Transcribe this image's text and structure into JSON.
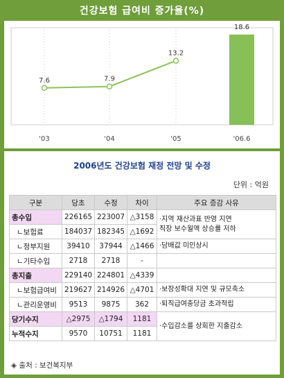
{
  "title": "건강보험 급여비 증가율(%)",
  "chart_data": {
    "type": "bar+line",
    "categories": [
      "'03",
      "'04",
      "'05",
      "'06.6"
    ],
    "line_values": [
      7.6,
      7.9,
      13.2,
      null
    ],
    "bar_values": [
      null,
      null,
      null,
      18.6
    ],
    "labels": [
      "7.6",
      "7.9",
      "13.2",
      "18.6"
    ],
    "ylim": [
      0,
      20
    ],
    "colors": {
      "line": "#8cc25a",
      "bar": "#86c056"
    }
  },
  "table": {
    "title": "2006년도 건강보험 재정 전망 및 수정",
    "unit": "단위 : 억원",
    "headers": [
      "구분",
      "당초",
      "수정",
      "차이",
      "주요 증감 사유"
    ],
    "rows": [
      {
        "cat": "총수입",
        "a": "226165",
        "b": "223007",
        "c": "△3158"
      },
      {
        "cat": "ㄴ보험료",
        "a": "184037",
        "b": "182345",
        "c": "△1692"
      },
      {
        "cat": "ㄴ정부지원",
        "a": "39410",
        "b": "37944",
        "c": "△1466"
      },
      {
        "cat": "ㄴ기타수입",
        "a": "2718",
        "b": "2718",
        "c": "-"
      },
      {
        "cat": "총지출",
        "a": "229140",
        "b": "224801",
        "c": "△4339"
      },
      {
        "cat": "ㄴ보험급여비",
        "a": "219627",
        "b": "214926",
        "c": "△4701"
      },
      {
        "cat": "ㄴ관리운영비",
        "a": "9513",
        "b": "9875",
        "c": "362"
      },
      {
        "cat": "당기수지",
        "a": "△2975",
        "b": "△1794",
        "c": "1181"
      },
      {
        "cat": "누적수지",
        "a": "9570",
        "b": "10751",
        "c": "1181"
      }
    ],
    "reasons": {
      "r1": "·지역 재산과표 반영 지연\n직장 보수월액 상승률 저하",
      "r2": "·담배값 미인상시",
      "r3": "·보장성확대 지연 및 규모축소",
      "r4": "·퇴직급여충당금 초과적립",
      "r5": "·수입감소를 상회한 지출감소"
    }
  },
  "source": "◈ 출처 : 보건복지부"
}
